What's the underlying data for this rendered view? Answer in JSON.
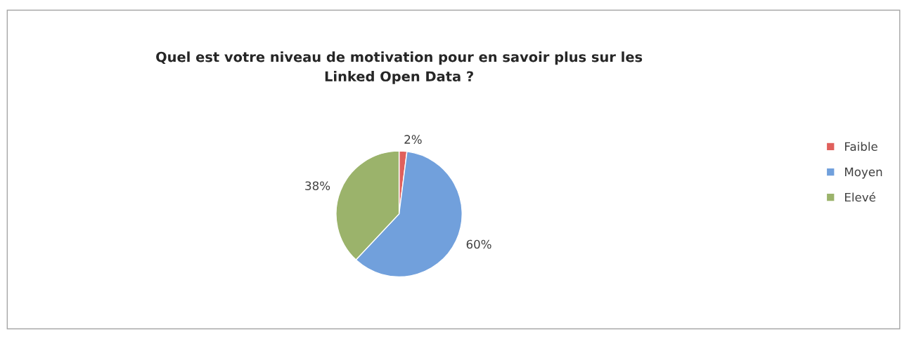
{
  "chart_data": {
    "type": "pie",
    "title": "Quel est votre niveau de motivation pour en savoir plus sur les\nLinked Open Data ?",
    "categories": [
      "Faible",
      "Moyen",
      "Elevé"
    ],
    "values": [
      2,
      60,
      38
    ],
    "colors": [
      "#e0605c",
      "#71a0dc",
      "#9bb36b"
    ],
    "value_labels": [
      "2%",
      "60%",
      "38%"
    ],
    "legend": "right"
  }
}
